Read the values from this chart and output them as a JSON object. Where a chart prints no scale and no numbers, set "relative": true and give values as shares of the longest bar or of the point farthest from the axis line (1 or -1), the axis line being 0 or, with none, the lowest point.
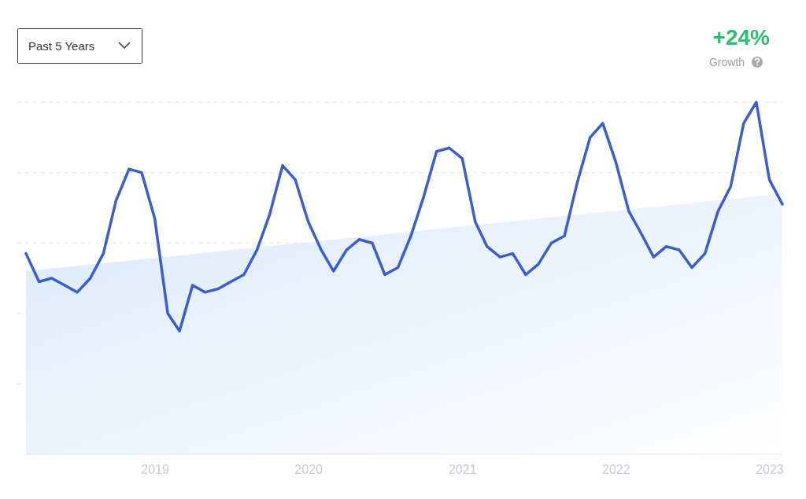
{
  "chart_data": {
    "type": "line",
    "relative": true,
    "grid": "y",
    "x": [
      "2018-03",
      "2018-04",
      "2018-05",
      "2018-06",
      "2018-07",
      "2018-08",
      "2018-09",
      "2018-10",
      "2018-11",
      "2018-12",
      "2019-01",
      "2019-02",
      "2019-03",
      "2019-04",
      "2019-05",
      "2019-06",
      "2019-07",
      "2019-08",
      "2019-09",
      "2019-10",
      "2019-11",
      "2019-12",
      "2020-01",
      "2020-02",
      "2020-03",
      "2020-04",
      "2020-05",
      "2020-06",
      "2020-07",
      "2020-08",
      "2020-09",
      "2020-10",
      "2020-11",
      "2020-12",
      "2021-01",
      "2021-02",
      "2021-03",
      "2021-04",
      "2021-05",
      "2021-06",
      "2021-07",
      "2021-08",
      "2021-09",
      "2021-10",
      "2021-11",
      "2021-12",
      "2022-01",
      "2022-02",
      "2022-03",
      "2022-04",
      "2022-05",
      "2022-06",
      "2022-07",
      "2022-08",
      "2022-09",
      "2022-10",
      "2022-11",
      "2022-12",
      "2023-01",
      "2023-02"
    ],
    "xlim": [
      "2018-03",
      "2023-02"
    ],
    "xticks": [
      "2019",
      "2020",
      "2021",
      "2022",
      "2023"
    ],
    "series": [
      {
        "type": "area",
        "color": "#dbe9fb",
        "x": [
          "2018-03",
          "2023-02"
        ],
        "values": [
          0.52,
          0.74
        ]
      },
      {
        "color": "#3a5fcd",
        "values": [
          0.57,
          0.49,
          0.5,
          0.48,
          0.46,
          0.5,
          0.57,
          0.72,
          0.81,
          0.8,
          0.67,
          0.4,
          0.35,
          0.48,
          0.46,
          0.47,
          0.49,
          0.51,
          0.58,
          0.68,
          0.82,
          0.78,
          0.66,
          0.58,
          0.52,
          0.58,
          0.61,
          0.6,
          0.51,
          0.53,
          0.62,
          0.73,
          0.86,
          0.87,
          0.84,
          0.66,
          0.59,
          0.56,
          0.57,
          0.51,
          0.54,
          0.6,
          0.62,
          0.77,
          0.9,
          0.94,
          0.83,
          0.69,
          0.63,
          0.56,
          0.59,
          0.58,
          0.53,
          0.57,
          0.69,
          0.76,
          0.94,
          1,
          0.78,
          0.71
        ]
      }
    ],
    "annotations": [
      "Past 5 Years",
      "+24%",
      "Growth"
    ]
  }
}
